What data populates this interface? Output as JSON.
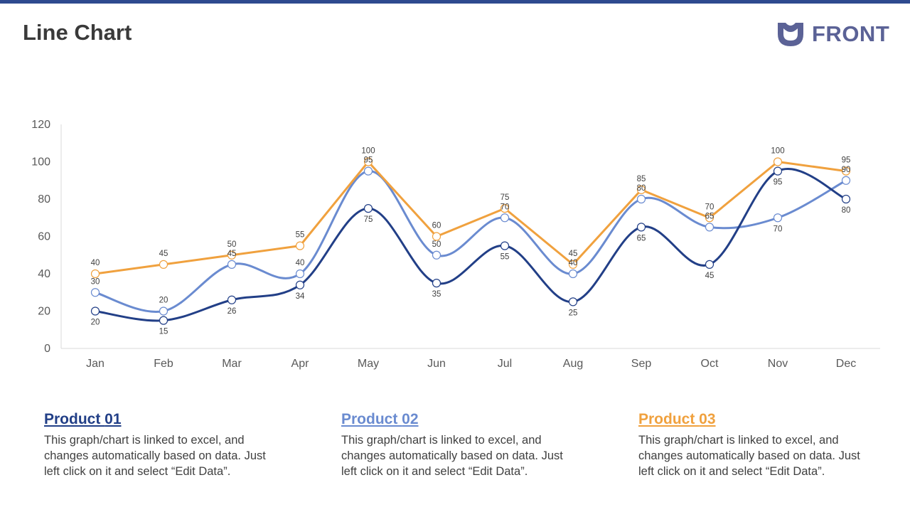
{
  "header": {
    "title": "Line Chart",
    "brand": "FRONT",
    "accent": "#2e4a8f"
  },
  "colors": {
    "product1": "#223f87",
    "product2": "#6a8bd0",
    "product3": "#f0a13e"
  },
  "chart_data": {
    "type": "line",
    "title": "",
    "xlabel": "",
    "ylabel": "",
    "ylim": [
      0,
      120
    ],
    "yticks": [
      0,
      20,
      40,
      60,
      80,
      100,
      120
    ],
    "grid": false,
    "categories": [
      "Jan",
      "Feb",
      "Mar",
      "Apr",
      "May",
      "Jun",
      "Jul",
      "Aug",
      "Sep",
      "Oct",
      "Nov",
      "Dec"
    ],
    "series": [
      {
        "name": "Product 01",
        "color": "#223f87",
        "values": [
          20,
          15,
          26,
          34,
          75,
          35,
          55,
          25,
          65,
          45,
          95,
          80
        ]
      },
      {
        "name": "Product 02",
        "color": "#6a8bd0",
        "values": [
          30,
          20,
          45,
          40,
          95,
          50,
          70,
          40,
          80,
          65,
          70,
          90
        ]
      },
      {
        "name": "Product 03",
        "color": "#f0a13e",
        "values": [
          40,
          45,
          50,
          55,
          100,
          60,
          75,
          45,
          85,
          70,
          100,
          95
        ]
      }
    ]
  },
  "products": [
    {
      "title_prefix": "Product ",
      "title_num": "01",
      "color": "#223f87",
      "text": "This graph/chart is linked to excel, and changes automatically based on data. Just left click on it and select “Edit Data”."
    },
    {
      "title_prefix": "Product ",
      "title_num": "02",
      "color": "#6a8bd0",
      "text": "This graph/chart is linked to excel, and changes automatically based on data. Just left click on it and select “Edit Data”."
    },
    {
      "title_prefix": "Product ",
      "title_num": "03",
      "color": "#f0a13e",
      "text": "This graph/chart is linked to excel, and changes automatically based on data. Just left click on it and select “Edit Data”."
    }
  ]
}
